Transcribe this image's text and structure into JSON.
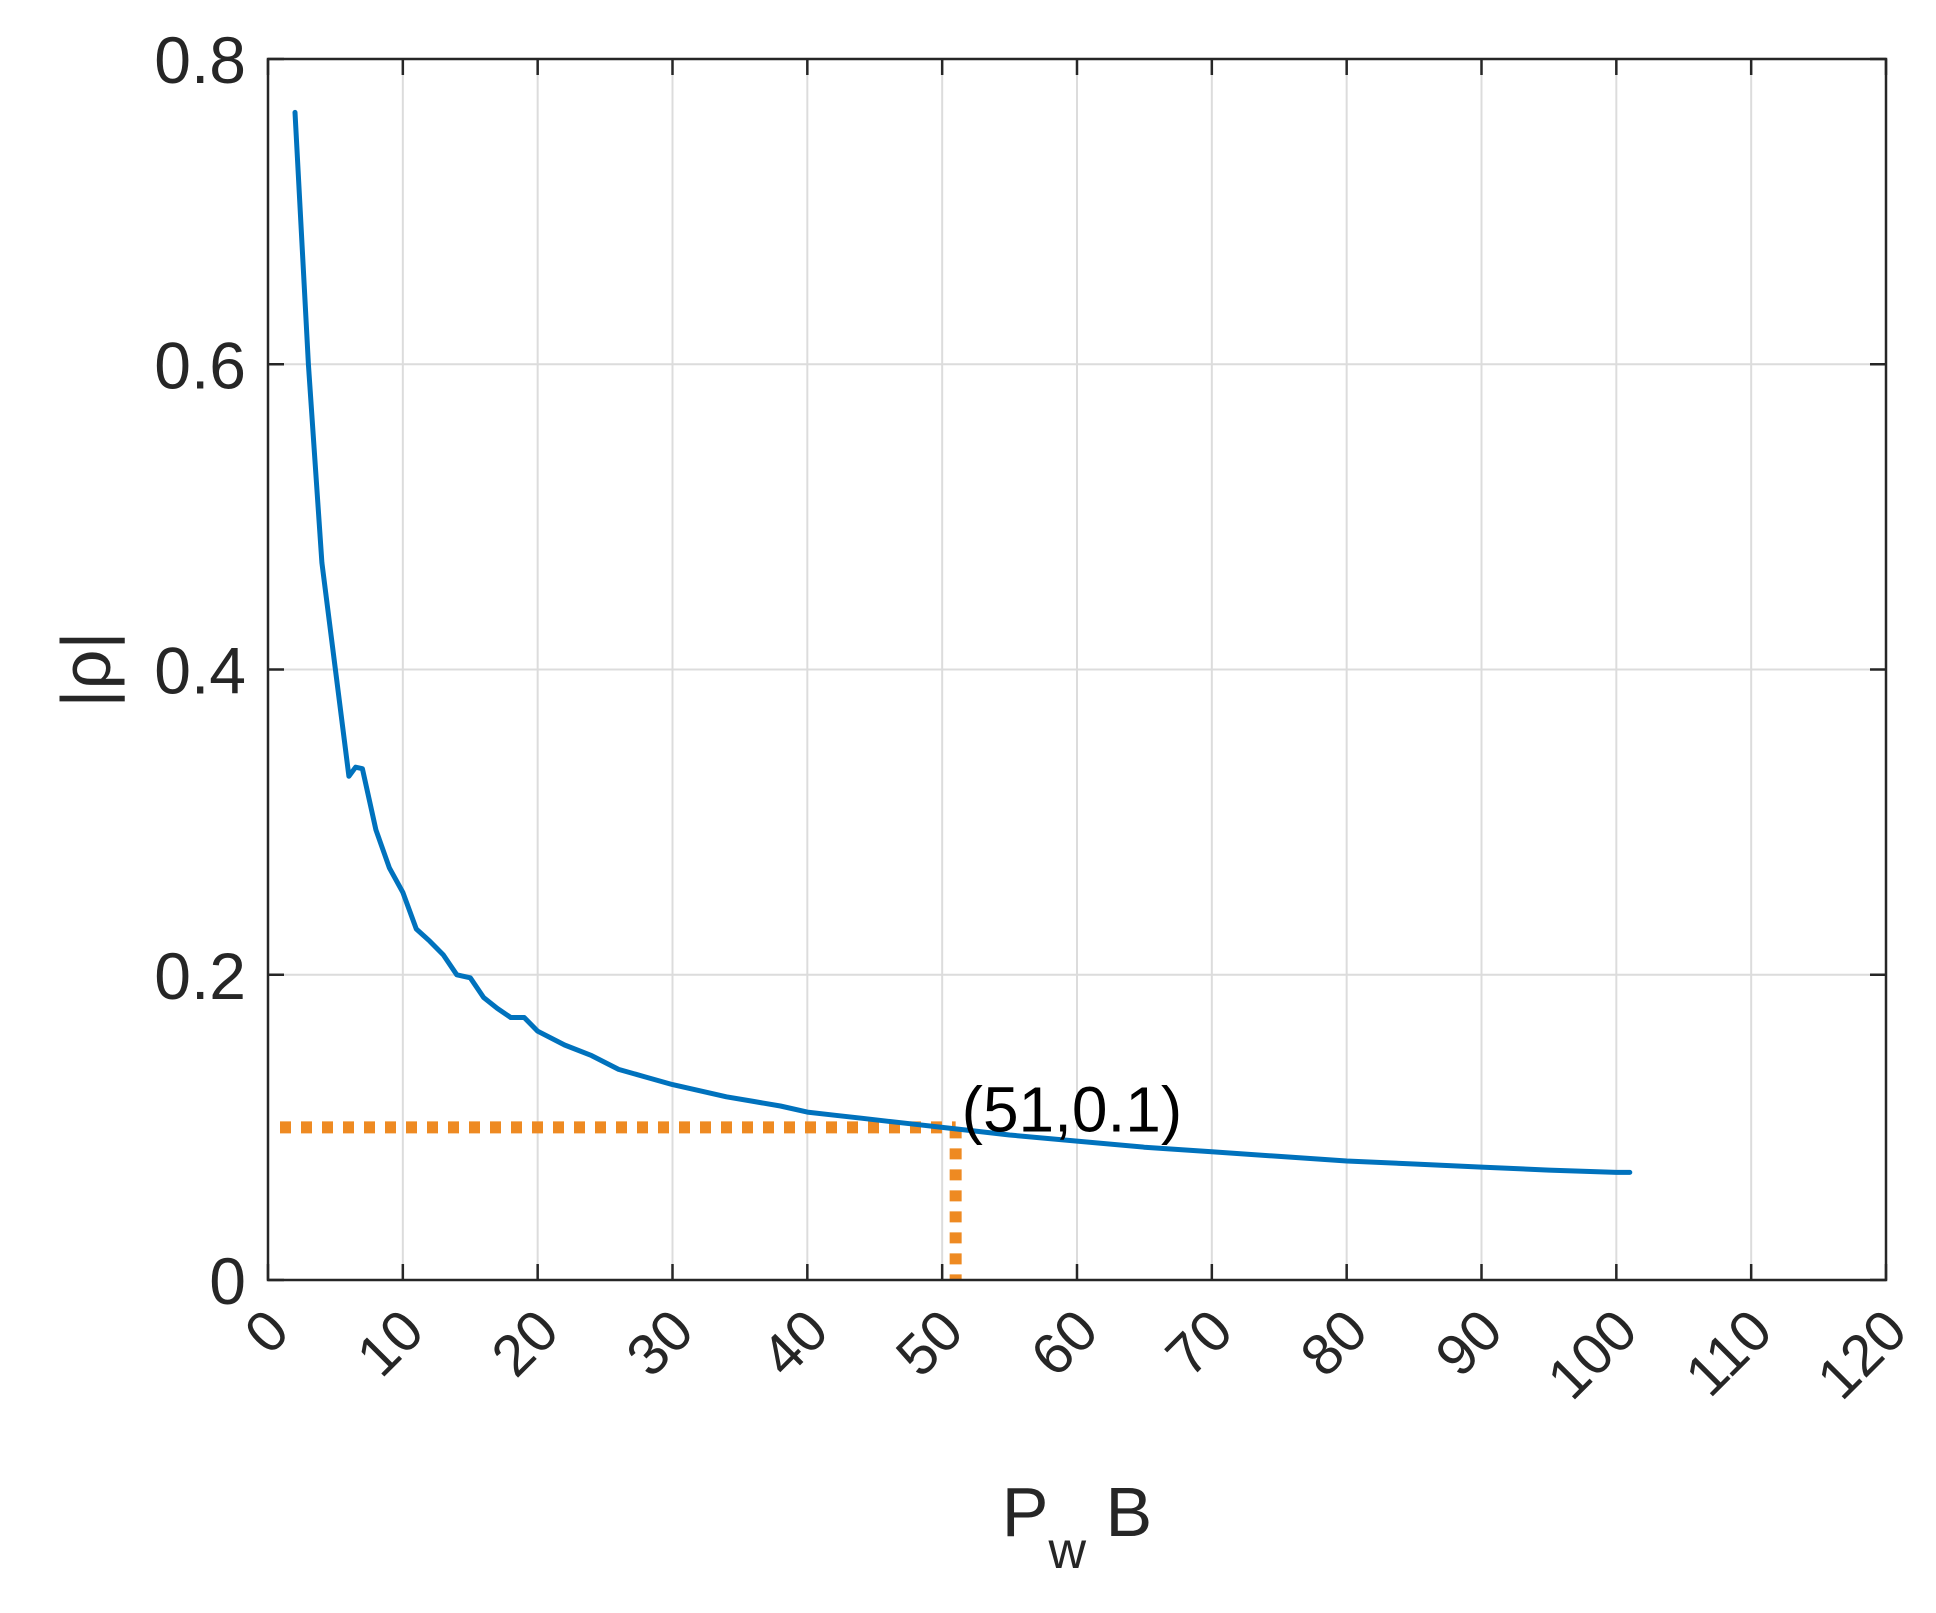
{
  "chart_data": {
    "type": "line",
    "xlabel": {
      "main": "P",
      "subscript": "w",
      "suffix": " B"
    },
    "ylabel": {
      "text": "|ρ|",
      "bar": "|",
      "symbol": "ρ"
    },
    "xlim": [
      0,
      120
    ],
    "ylim": [
      0,
      0.8
    ],
    "xticks": [
      0,
      10,
      20,
      30,
      40,
      50,
      60,
      70,
      80,
      90,
      100,
      110,
      120
    ],
    "yticks": [
      0,
      0.2,
      0.4,
      0.6,
      0.8
    ],
    "ytick_labels": [
      "0",
      "0.2",
      "0.4",
      "0.6",
      "0.8"
    ],
    "grid": true,
    "box": true,
    "series": [
      {
        "color": "#0072BD",
        "x": [
          2,
          3,
          4,
          5,
          6,
          6.5,
          7,
          8,
          9,
          10,
          11,
          12,
          13,
          14,
          15,
          16,
          17,
          18,
          19,
          20,
          22,
          24,
          26,
          28,
          30,
          32,
          34,
          36,
          38,
          40,
          42,
          44,
          46,
          48,
          50,
          52,
          55,
          60,
          65,
          70,
          75,
          80,
          85,
          90,
          95,
          100,
          101
        ],
        "y": [
          0.765,
          0.6,
          0.47,
          0.4,
          0.33,
          0.336,
          0.335,
          0.295,
          0.27,
          0.254,
          0.23,
          0.222,
          0.213,
          0.2,
          0.198,
          0.185,
          0.178,
          0.172,
          0.172,
          0.163,
          0.154,
          0.147,
          0.138,
          0.133,
          0.128,
          0.124,
          0.12,
          0.117,
          0.114,
          0.11,
          0.108,
          0.106,
          0.104,
          0.102,
          0.1,
          0.098,
          0.095,
          0.091,
          0.087,
          0.084,
          0.081,
          0.078,
          0.076,
          0.074,
          0.072,
          0.0705,
          0.0705
        ]
      }
    ],
    "annotation": {
      "label": "(51,0.1)",
      "x": 51,
      "y": 0.1,
      "line_color": "#EE8A22"
    }
  }
}
